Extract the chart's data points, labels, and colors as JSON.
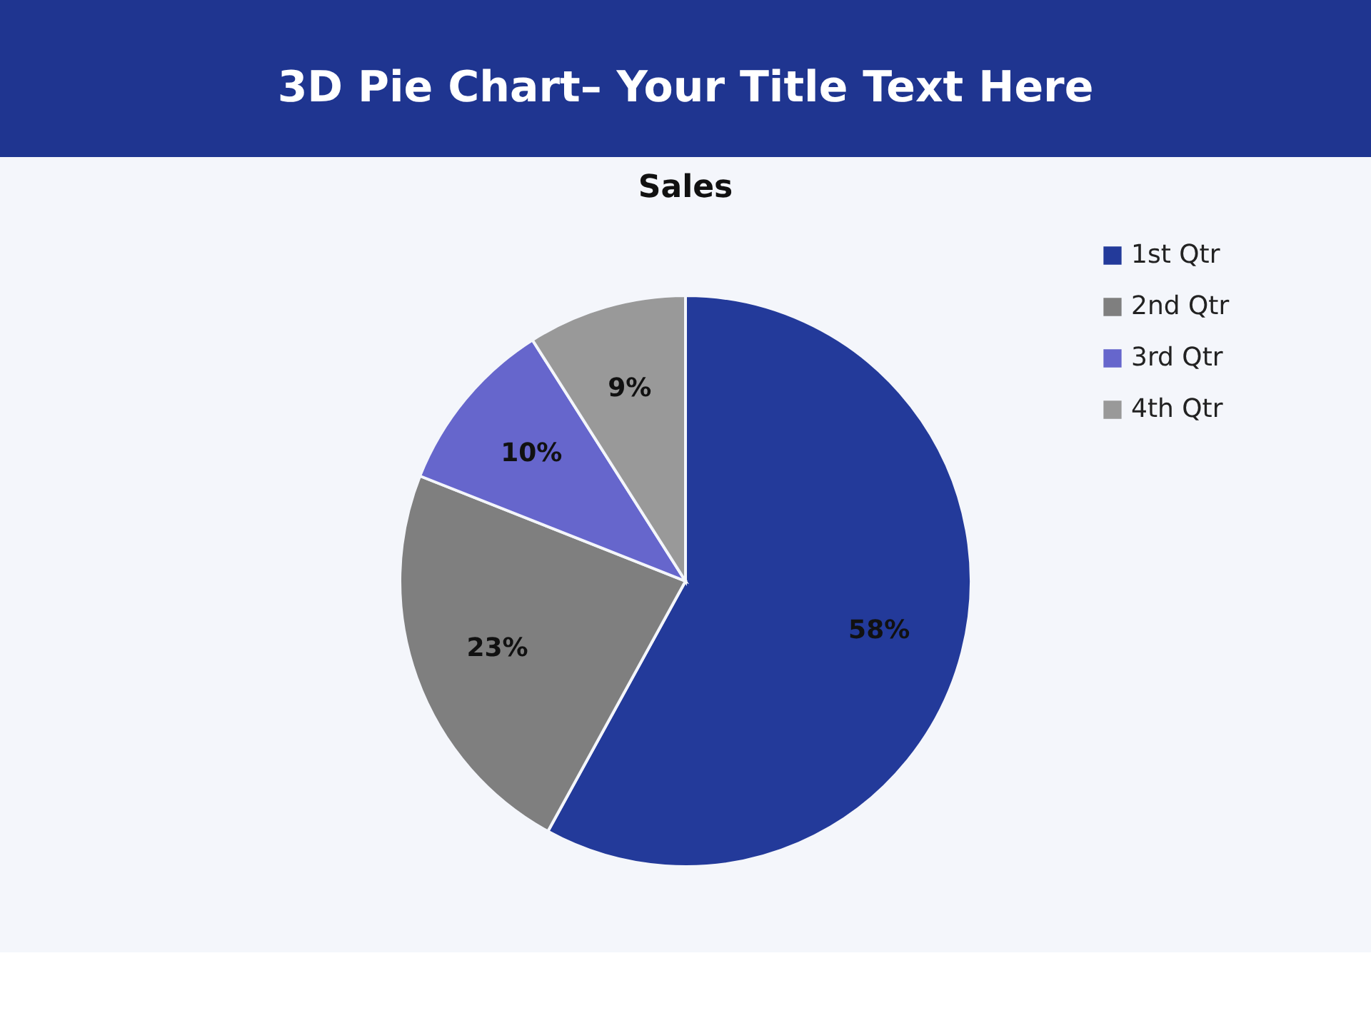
{
  "chart_data": {
    "type": "pie",
    "title": "3D Pie Chart– Your Title Text Here",
    "subtitle": "Sales",
    "categories": [
      "1st Qtr",
      "2nd Qtr",
      "3rd Qtr",
      "4th Qtr"
    ],
    "values": [
      58,
      23,
      10,
      9
    ],
    "colors": [
      "#233a9a",
      "#7f7f7f",
      "#6666cc",
      "#999999"
    ],
    "value_labels": [
      "58%",
      "23%",
      "10%",
      "9%"
    ],
    "legend": "right"
  }
}
